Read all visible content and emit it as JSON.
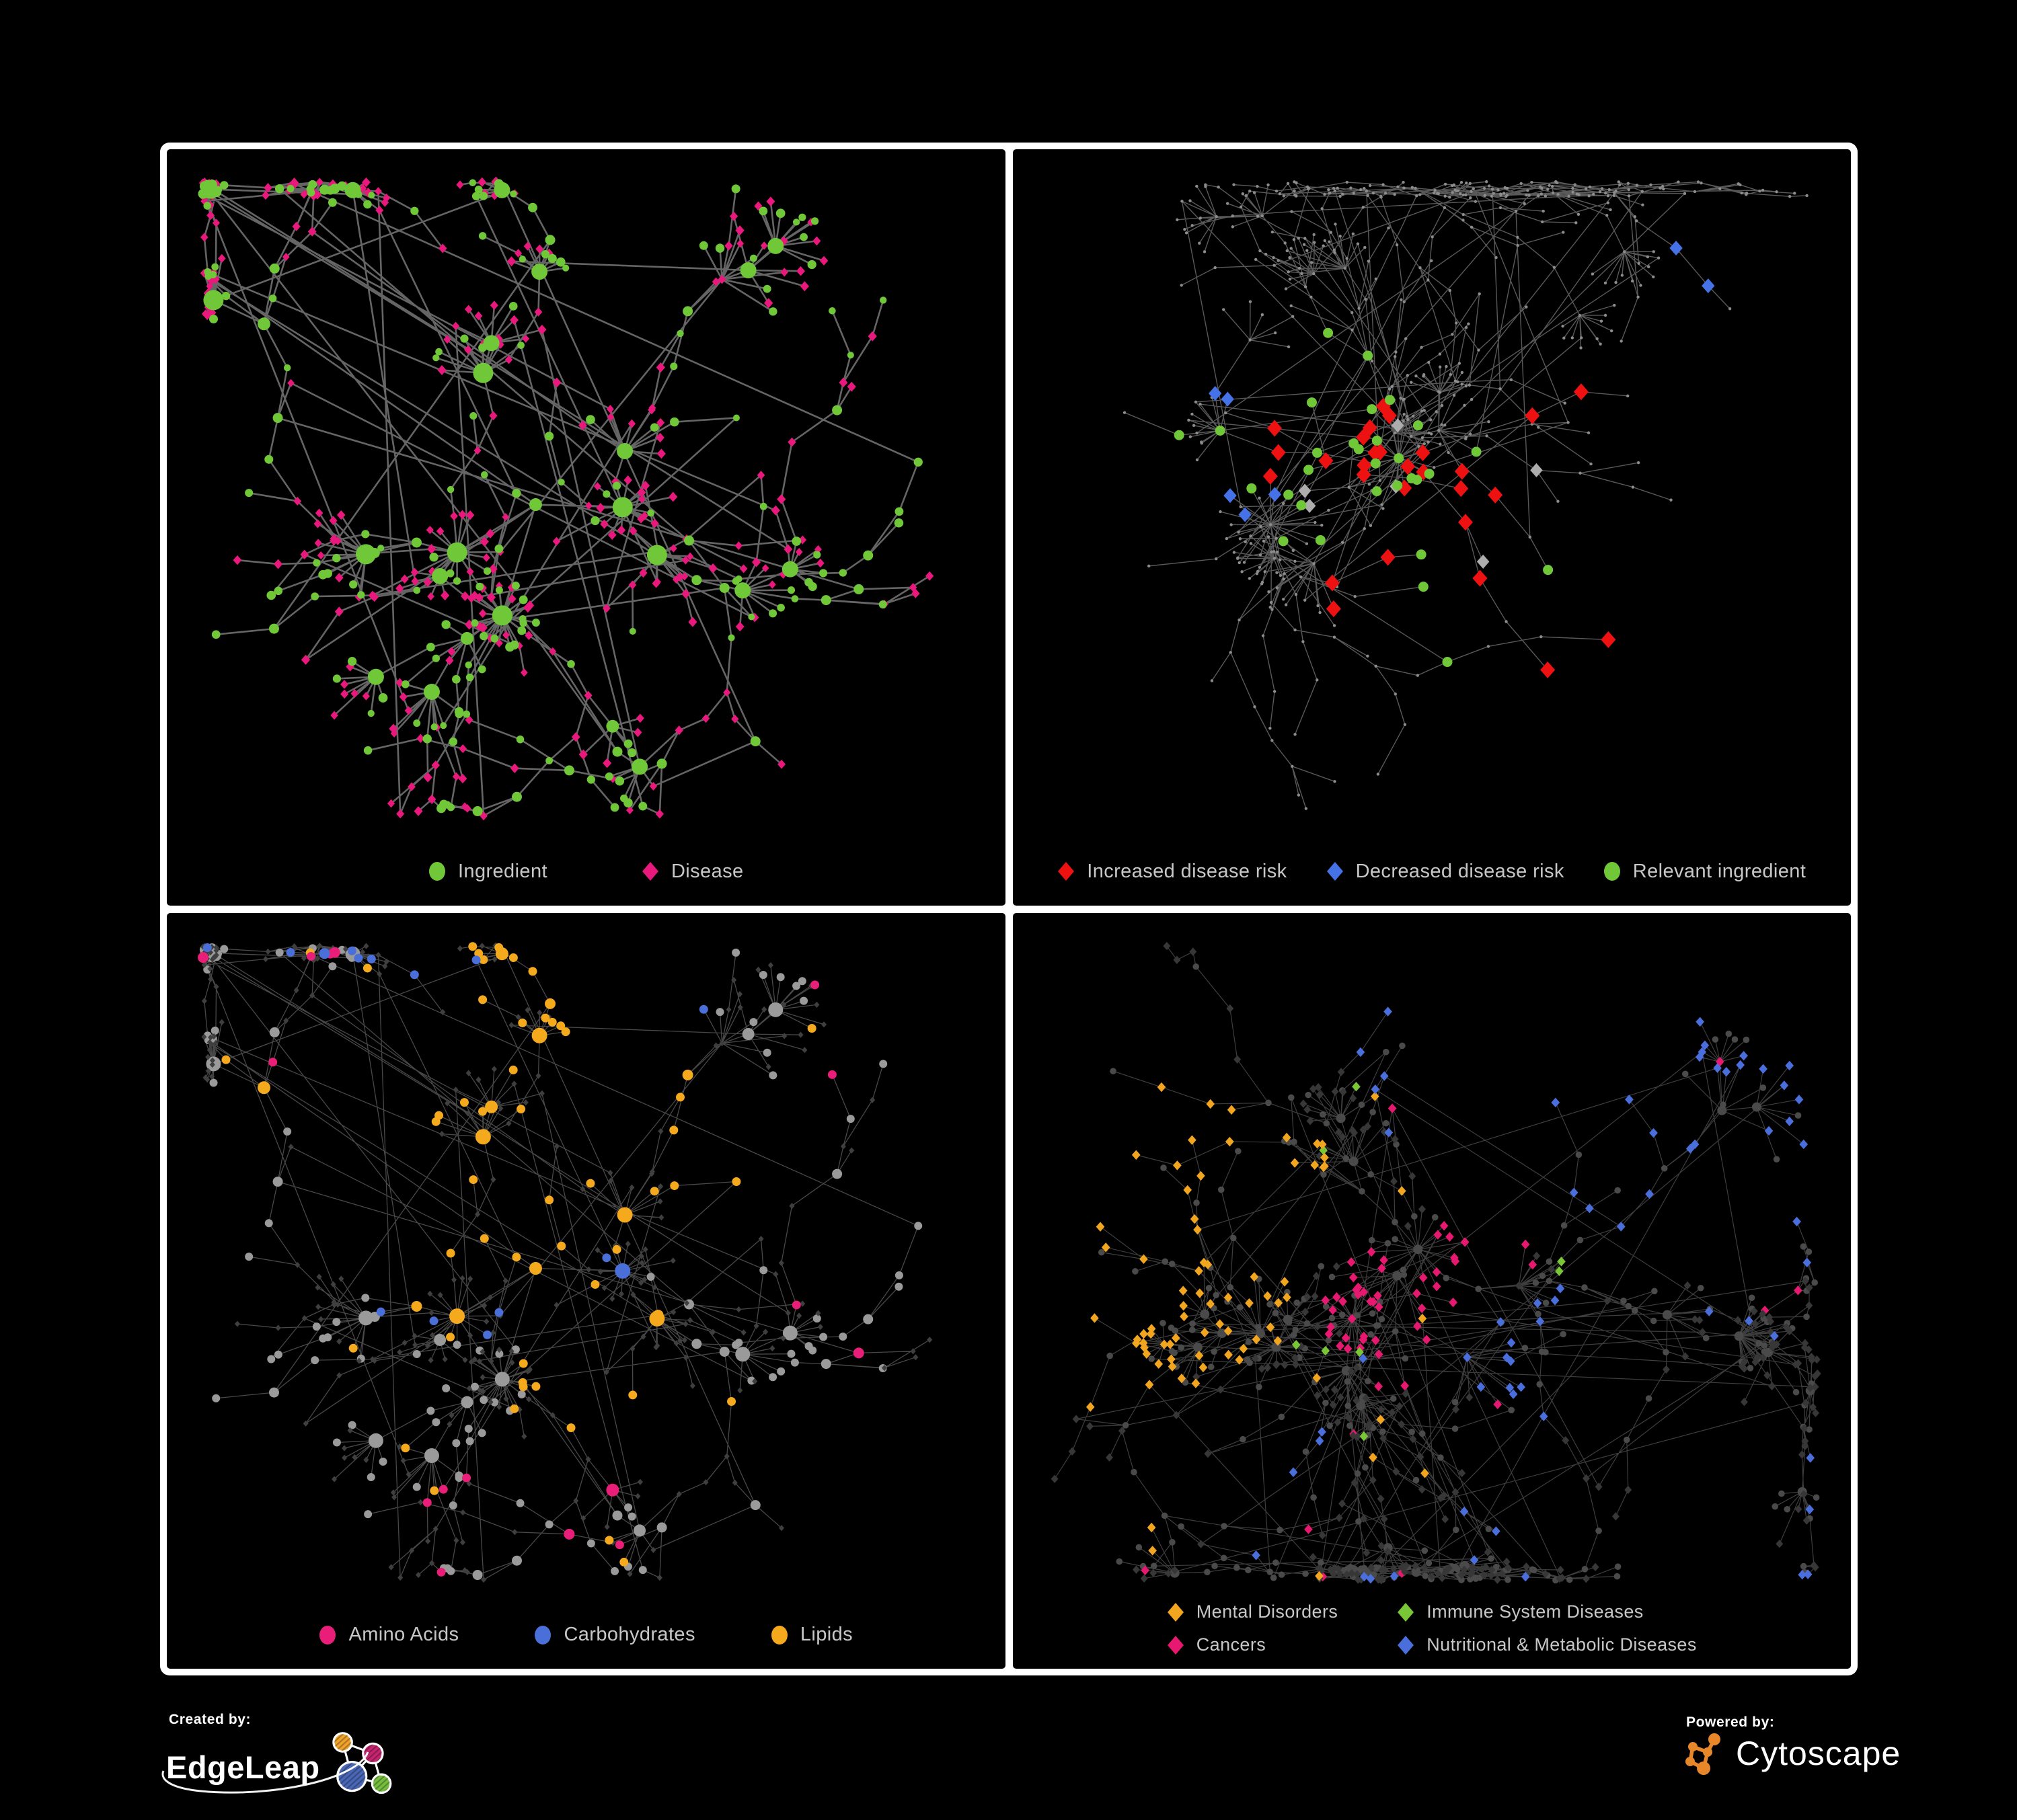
{
  "page": {
    "background": "#000000",
    "frame_color": "#ffffff"
  },
  "footer": {
    "created_by": {
      "label": "Created by:",
      "brand": "EdgeLeap"
    },
    "powered_by": {
      "label": "Powered by:",
      "brand": "Cytoscape"
    },
    "edgeleap_logo_colors": {
      "orange": "#F0A32C",
      "magenta": "#C4256F",
      "blue": "#4A67B5",
      "green": "#76BE3E"
    },
    "cytoscape_logo_color": "#E8872A"
  },
  "panels": [
    {
      "name": "ingredient-disease",
      "legend_gap": 140,
      "legend": [
        {
          "label": "Ingredient",
          "shape": "circle",
          "color": "#70C738"
        },
        {
          "label": "Disease",
          "shape": "diamond",
          "color": "#E8187C"
        }
      ],
      "colors": {
        "ingredient": "#70C738",
        "disease": "#E8187C",
        "edge": "#6E6E6E"
      },
      "gen": {
        "seed": 91,
        "n": 520,
        "starProb": 0.16,
        "step": 62,
        "megaHubs": 3,
        "extra": 40
      }
    },
    {
      "name": "disease-risk",
      "legend_gap": 58,
      "legend": [
        {
          "label": "Increased disease risk",
          "shape": "diamond",
          "color": "#EE1111"
        },
        {
          "label": "Decreased disease risk",
          "shape": "diamond",
          "color": "#4572E6"
        },
        {
          "label": "Relevant ingredient",
          "shape": "circle",
          "color": "#70C738"
        }
      ],
      "colors": {
        "increased": "#EE1111",
        "decreased": "#4572E6",
        "neutral": "#ADADAD",
        "relevant": "#70C738",
        "base": "#8C8C8C",
        "edge": "#636363"
      },
      "gen": {
        "seed": 57,
        "n": 560,
        "starProb": 0.13,
        "step": 68,
        "megaHubs": 2,
        "extra": 46
      }
    },
    {
      "name": "nutrients",
      "legend_gap": 112,
      "legend": [
        {
          "label": "Amino Acids",
          "shape": "circle",
          "color": "#E91E78"
        },
        {
          "label": "Carbohydrates",
          "shape": "circle",
          "color": "#4B6FD8"
        },
        {
          "label": "Lipids",
          "shape": "circle",
          "color": "#F5A91D"
        }
      ],
      "colors": {
        "amino": "#E91E78",
        "carb": "#4B6FD8",
        "lipid": "#F5A91D",
        "base_ingredient": "#9A9A9A",
        "base_disease": "#3F3F3F",
        "edge": "#ABABAB"
      },
      "gen": {
        "seed": 91,
        "n": 520,
        "starProb": 0.16,
        "step": 62,
        "megaHubs": 3,
        "extra": 40
      }
    },
    {
      "name": "disease-categories",
      "legend_columns": 2,
      "legend": [
        {
          "label": "Mental Disorders",
          "shape": "diamond",
          "color": "#F2A51F"
        },
        {
          "label": "Immune System Diseases",
          "shape": "diamond",
          "color": "#79C636"
        },
        {
          "label": "Cancers",
          "shape": "diamond",
          "color": "#E6186F"
        },
        {
          "label": "Nutritional & Metabolic Diseases",
          "shape": "diamond",
          "color": "#4A6FDC"
        },
        {
          "label": "",
          "shape": "",
          "color": ""
        }
      ],
      "colors": {
        "mental": "#F2A51F",
        "immune": "#79C636",
        "cancer": "#E6186F",
        "metabolic": "#4A6FDC",
        "base_disease": "#373737",
        "base_ingredient": "#4A4A4A",
        "edge": "#9A9A9A"
      },
      "gen": {
        "seed": 23,
        "n": 730,
        "starProb": 0.15,
        "step": 60,
        "megaHubs": 3,
        "extra": 70
      }
    }
  ]
}
